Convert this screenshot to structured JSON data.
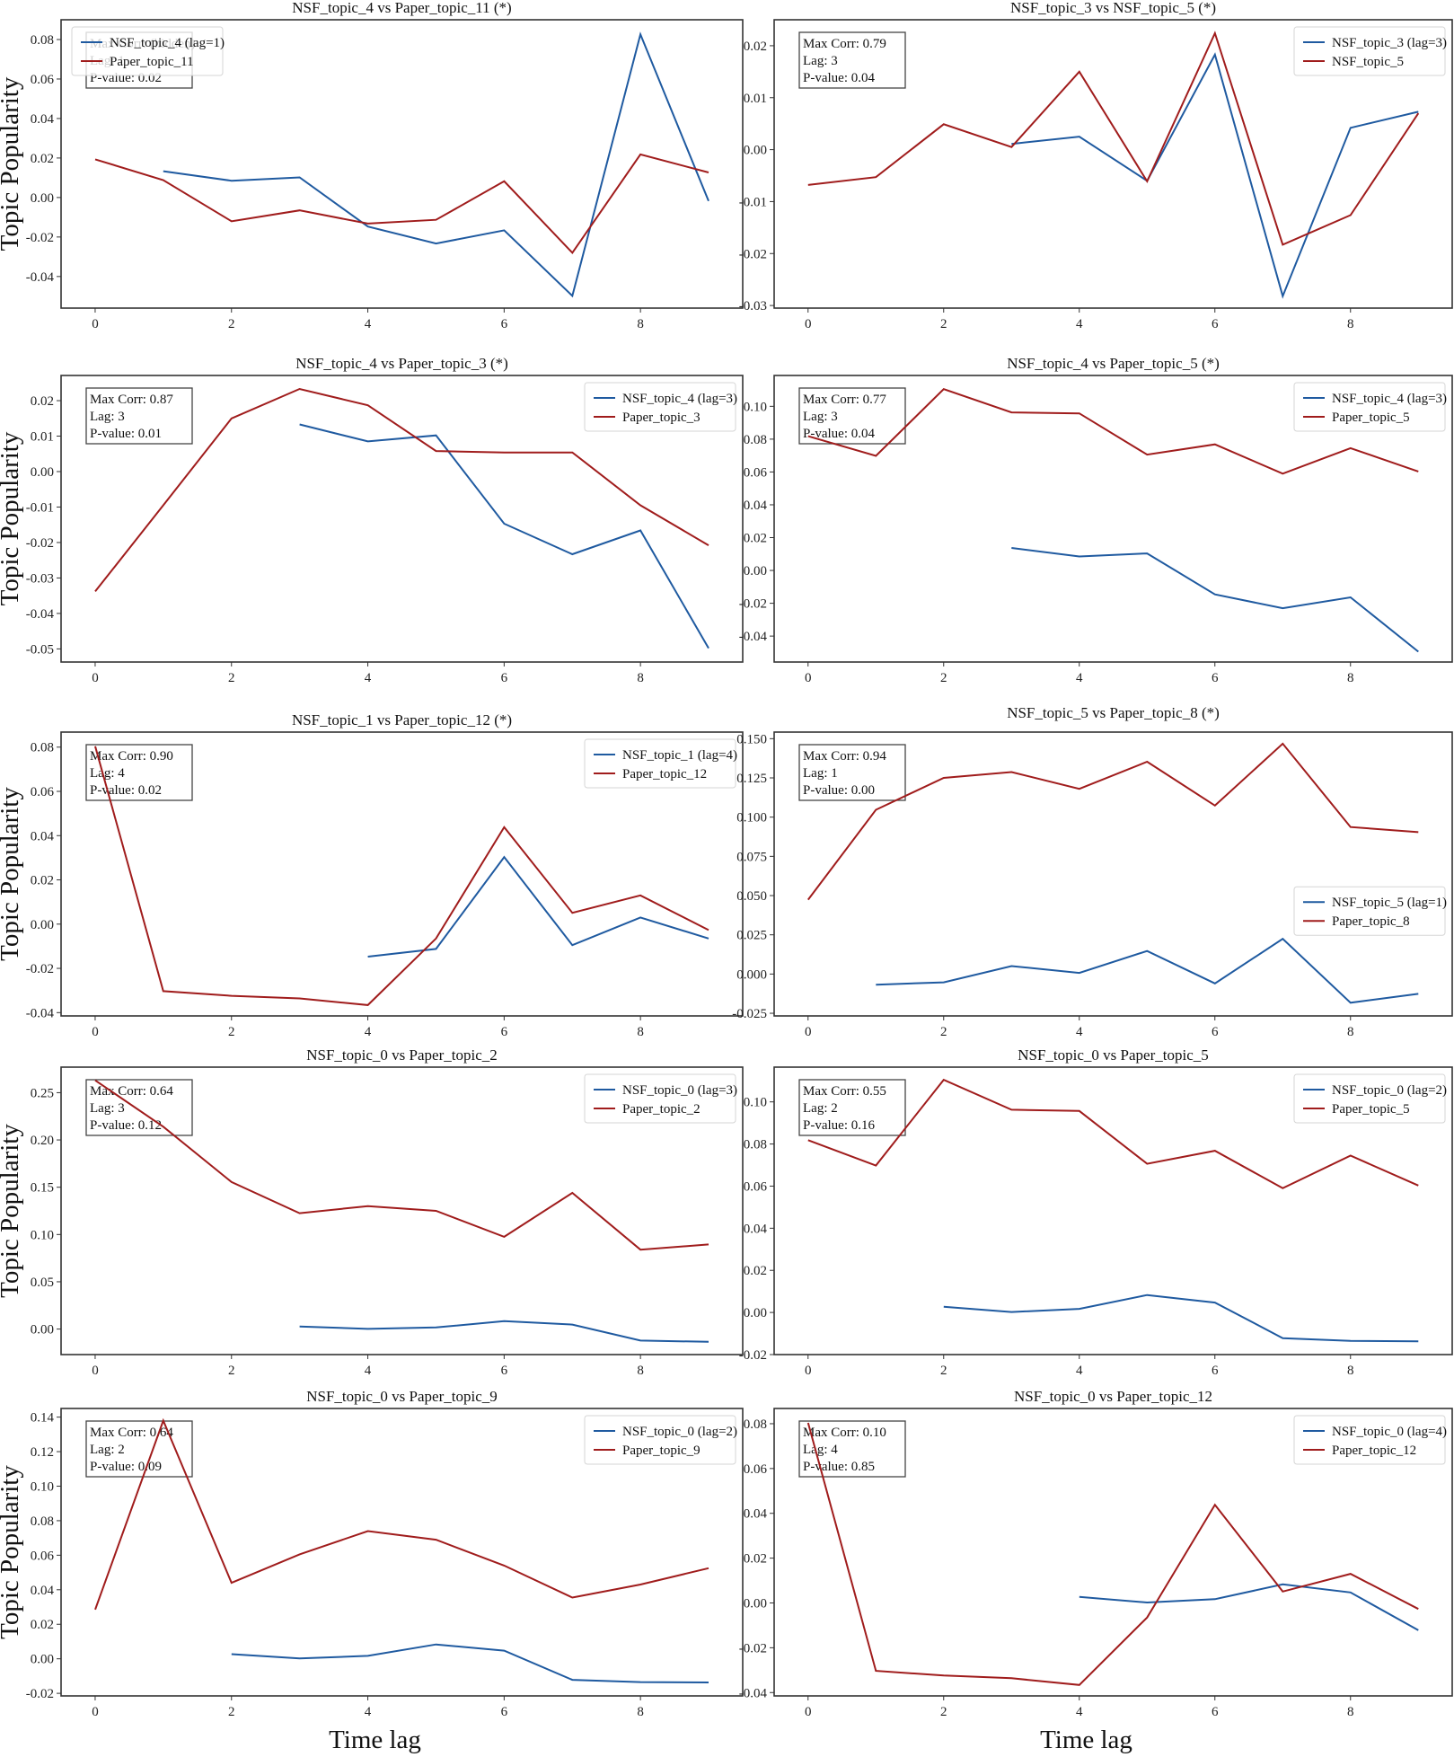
{
  "figure": {
    "ylabel": "Topic Popularity",
    "xlabel": "Time lag",
    "colors": {
      "nsf": "#1f5aa0",
      "paper": "#a01c1c"
    }
  },
  "chart_data": [
    {
      "type": "line",
      "title": "NSF_topic_4 vs Paper_topic_11 (*)",
      "annotation": [
        "Max Corr: (hidden)",
        "Lag: 1",
        "P-value: 0.02"
      ],
      "annotation_hidden_by_legend": true,
      "legend": "top-left",
      "x_ticks": [
        0,
        2,
        4,
        6,
        8
      ],
      "xlim": [
        -0.5,
        9.5
      ],
      "y_ticks": [
        -0.04,
        -0.02,
        0.0,
        0.02,
        0.04,
        0.06,
        0.08
      ],
      "y_tick_labels": [
        "-0.04",
        "-0.02",
        "0.00",
        "0.02",
        "0.04",
        "0.06",
        "0.08"
      ],
      "ylim": [
        -0.056,
        0.09
      ],
      "series": [
        {
          "name": "NSF_topic_4 (lag=1)",
          "color_key": "nsf",
          "x": [
            1,
            2,
            3,
            4,
            5,
            6,
            7,
            8,
            9
          ],
          "values": [
            0.0133,
            0.0085,
            0.0102,
            -0.0147,
            -0.0233,
            -0.0166,
            -0.0498,
            0.0826,
            -0.0018
          ]
        },
        {
          "name": "Paper_topic_11",
          "color_key": "paper",
          "x": [
            0,
            1,
            2,
            3,
            4,
            5,
            6,
            7,
            8,
            9
          ],
          "values": [
            0.0193,
            0.0088,
            -0.012,
            -0.0065,
            -0.0132,
            -0.0113,
            0.0082,
            -0.028,
            0.0218,
            0.0127
          ]
        }
      ]
    },
    {
      "type": "line",
      "title": "NSF_topic_3 vs NSF_topic_5 (*)",
      "annotation": [
        "Max Corr: 0.79",
        "Lag: 3",
        "P-value: 0.04"
      ],
      "legend": "top-right",
      "x_ticks": [
        0,
        2,
        4,
        6,
        8
      ],
      "xlim": [
        -0.5,
        9.5
      ],
      "y_ticks": [
        -0.03,
        -0.02,
        -0.01,
        0.0,
        0.01,
        0.02
      ],
      "y_tick_labels": [
        "-0.03",
        "-0.02",
        "-0.01",
        "0.00",
        "0.01",
        "0.02"
      ],
      "ylim": [
        -0.0305,
        0.025
      ],
      "series": [
        {
          "name": "NSF_topic_3 (lag=3)",
          "color_key": "nsf",
          "x": [
            3,
            4,
            5,
            6,
            7,
            8,
            9
          ],
          "values": [
            0.0011,
            0.0025,
            -0.006,
            0.0183,
            -0.0282,
            0.0042,
            0.0073
          ]
        },
        {
          "name": "NSF_topic_5",
          "color_key": "paper",
          "x": [
            0,
            1,
            2,
            3,
            4,
            5,
            6,
            7,
            8,
            9
          ],
          "values": [
            -0.0068,
            -0.0053,
            0.0049,
            0.0005,
            0.015,
            -0.0061,
            0.0224,
            -0.0183,
            -0.0126,
            0.007
          ]
        }
      ]
    },
    {
      "type": "line",
      "title": "NSF_topic_4 vs Paper_topic_3 (*)",
      "annotation": [
        "Max Corr: 0.87",
        "Lag: 3",
        "P-value: 0.01"
      ],
      "legend": "top-right",
      "x_ticks": [
        0,
        2,
        4,
        6,
        8
      ],
      "xlim": [
        -0.5,
        9.5
      ],
      "y_ticks": [
        -0.05,
        -0.04,
        -0.03,
        -0.02,
        -0.01,
        0.0,
        0.01,
        0.02
      ],
      "y_tick_labels": [
        "-0.05",
        "-0.04",
        "-0.03",
        "-0.02",
        "-0.01",
        "0.00",
        "0.01",
        "0.02"
      ],
      "ylim": [
        -0.0537,
        0.0271
      ],
      "series": [
        {
          "name": "NSF_topic_4 (lag=3)",
          "color_key": "nsf",
          "x": [
            3,
            4,
            5,
            6,
            7,
            8,
            9
          ],
          "values": [
            0.0133,
            0.0085,
            0.0102,
            -0.0147,
            -0.0233,
            -0.0166,
            -0.0498
          ]
        },
        {
          "name": "Paper_topic_3",
          "color_key": "paper",
          "x": [
            0,
            1,
            2,
            3,
            4,
            5,
            6,
            7,
            8,
            9
          ],
          "values": [
            -0.0338,
            -0.0095,
            0.015,
            0.0233,
            0.0187,
            0.0058,
            0.0054,
            0.0054,
            -0.0095,
            -0.0208
          ]
        }
      ]
    },
    {
      "type": "line",
      "title": "NSF_topic_4 vs Paper_topic_5 (*)",
      "annotation": [
        "Max Corr: 0.77",
        "Lag: 3",
        "P-value: 0.04"
      ],
      "legend": "top-right",
      "x_ticks": [
        0,
        2,
        4,
        6,
        8
      ],
      "xlim": [
        -0.5,
        9.5
      ],
      "y_ticks": [
        -0.04,
        -0.02,
        0.0,
        0.02,
        0.04,
        0.06,
        0.08,
        0.1
      ],
      "y_tick_labels": [
        "-0.04",
        "-0.02",
        "0.00",
        "0.02",
        "0.04",
        "0.06",
        "0.08",
        "0.10"
      ],
      "ylim": [
        -0.0558,
        0.1188
      ],
      "series": [
        {
          "name": "NSF_topic_4 (lag=3)",
          "color_key": "nsf",
          "x": [
            3,
            4,
            5,
            6,
            7,
            8,
            9
          ],
          "values": [
            0.0137,
            0.0085,
            0.0104,
            -0.0146,
            -0.023,
            -0.0164,
            -0.0495
          ]
        },
        {
          "name": "Paper_topic_5",
          "color_key": "paper",
          "x": [
            0,
            1,
            2,
            3,
            4,
            5,
            6,
            7,
            8,
            9
          ],
          "values": [
            0.0818,
            0.0698,
            0.1105,
            0.0963,
            0.0957,
            0.0706,
            0.0768,
            0.059,
            0.0745,
            0.0603
          ]
        }
      ]
    },
    {
      "type": "line",
      "title": "NSF_topic_1 vs Paper_topic_12 (*)",
      "annotation": [
        "Max Corr: 0.90",
        "Lag: 4",
        "P-value: 0.02"
      ],
      "legend": "top-right",
      "x_ticks": [
        0,
        2,
        4,
        6,
        8
      ],
      "xlim": [
        -0.5,
        9.5
      ],
      "y_ticks": [
        -0.04,
        -0.02,
        0.0,
        0.02,
        0.04,
        0.06,
        0.08
      ],
      "y_tick_labels": [
        "-0.04",
        "-0.02",
        "0.00",
        "0.02",
        "0.04",
        "0.06",
        "0.08"
      ],
      "ylim": [
        -0.0415,
        0.0868
      ],
      "series": [
        {
          "name": "NSF_topic_1 (lag=4)",
          "color_key": "nsf",
          "x": [
            4,
            5,
            6,
            7,
            8,
            9
          ],
          "values": [
            -0.0147,
            -0.0112,
            0.0303,
            -0.0095,
            0.003,
            -0.0065
          ]
        },
        {
          "name": "Paper_topic_12",
          "color_key": "paper",
          "x": [
            0,
            1,
            2,
            3,
            4,
            5,
            6,
            7,
            8,
            9
          ],
          "values": [
            0.0804,
            -0.0303,
            -0.0324,
            -0.0336,
            -0.0366,
            -0.0065,
            0.0438,
            0.0051,
            0.013,
            -0.0027
          ]
        }
      ]
    },
    {
      "type": "line",
      "title": "NSF_topic_5 vs Paper_topic_8 (*)",
      "annotation": [
        "Max Corr: 0.94",
        "Lag: 1",
        "P-value: 0.00"
      ],
      "legend": "center-right",
      "x_ticks": [
        0,
        2,
        4,
        6,
        8
      ],
      "xlim": [
        -0.5,
        9.5
      ],
      "y_ticks": [
        -0.025,
        0.0,
        0.025,
        0.05,
        0.075,
        0.1,
        0.125,
        0.15
      ],
      "y_tick_labels": [
        "-0.025",
        "0.000",
        "0.025",
        "0.050",
        "0.075",
        "0.100",
        "0.125",
        "0.150"
      ],
      "ylim": [
        -0.0267,
        0.1542
      ],
      "series": [
        {
          "name": "NSF_topic_5 (lag=1)",
          "color_key": "nsf",
          "x": [
            1,
            2,
            3,
            4,
            5,
            6,
            7,
            8,
            9
          ],
          "values": [
            -0.0068,
            -0.0053,
            0.0051,
            0.0007,
            0.0147,
            -0.006,
            0.0224,
            -0.0183,
            -0.0126
          ]
        },
        {
          "name": "Paper_topic_8",
          "color_key": "paper",
          "x": [
            0,
            1,
            2,
            3,
            4,
            5,
            6,
            7,
            8,
            9
          ],
          "values": [
            0.0474,
            0.1047,
            0.125,
            0.1287,
            0.118,
            0.1353,
            0.1074,
            0.1468,
            0.0937,
            0.0904
          ]
        }
      ]
    },
    {
      "type": "line",
      "title": "NSF_topic_0 vs Paper_topic_2",
      "annotation": [
        "Max Corr: 0.64",
        "Lag: 3",
        "P-value: 0.12"
      ],
      "legend": "top-right",
      "x_ticks": [
        0,
        2,
        4,
        6,
        8
      ],
      "xlim": [
        -0.5,
        9.5
      ],
      "y_ticks": [
        0.0,
        0.05,
        0.1,
        0.15,
        0.2,
        0.25
      ],
      "y_tick_labels": [
        "0.00",
        "0.05",
        "0.10",
        "0.15",
        "0.20",
        "0.25"
      ],
      "ylim": [
        -0.027,
        0.277
      ],
      "series": [
        {
          "name": "NSF_topic_0 (lag=3)",
          "color_key": "nsf",
          "x": [
            3,
            4,
            5,
            6,
            7,
            8,
            9
          ],
          "values": [
            0.0027,
            0.0002,
            0.0017,
            0.0083,
            0.0047,
            -0.0122,
            -0.0135
          ]
        },
        {
          "name": "Paper_topic_2",
          "color_key": "paper",
          "x": [
            0,
            1,
            2,
            3,
            4,
            5,
            6,
            7,
            8,
            9
          ],
          "values": [
            0.263,
            0.214,
            0.1555,
            0.1225,
            0.13,
            0.125,
            0.0975,
            0.144,
            0.084,
            0.0895
          ]
        }
      ]
    },
    {
      "type": "line",
      "title": "NSF_topic_0 vs Paper_topic_5",
      "annotation": [
        "Max Corr: 0.55",
        "Lag: 2",
        "P-value: 0.16"
      ],
      "legend": "top-right",
      "x_ticks": [
        0,
        2,
        4,
        6,
        8
      ],
      "xlim": [
        -0.5,
        9.5
      ],
      "y_ticks": [
        -0.02,
        0.0,
        0.02,
        0.04,
        0.06,
        0.08,
        0.1
      ],
      "y_tick_labels": [
        "-0.02",
        "0.00",
        "0.02",
        "0.04",
        "0.06",
        "0.08",
        "0.10"
      ],
      "ylim": [
        -0.02,
        0.1165
      ],
      "series": [
        {
          "name": "NSF_topic_0 (lag=2)",
          "color_key": "nsf",
          "x": [
            2,
            3,
            4,
            5,
            6,
            7,
            8,
            9
          ],
          "values": [
            0.0027,
            0.0002,
            0.0017,
            0.0083,
            0.0047,
            -0.0122,
            -0.0135,
            -0.0137
          ]
        },
        {
          "name": "Paper_topic_5",
          "color_key": "paper",
          "x": [
            0,
            1,
            2,
            3,
            4,
            5,
            6,
            7,
            8,
            9
          ],
          "values": [
            0.0818,
            0.0698,
            0.1105,
            0.0963,
            0.0957,
            0.0706,
            0.0768,
            0.059,
            0.0745,
            0.0603
          ]
        }
      ]
    },
    {
      "type": "line",
      "title": "NSF_topic_0 vs Paper_topic_9",
      "annotation": [
        "Max Corr: 0.64",
        "Lag: 2",
        "P-value: 0.09"
      ],
      "legend": "top-right",
      "x_ticks": [
        0,
        2,
        4,
        6,
        8
      ],
      "xlim": [
        -0.5,
        9.5
      ],
      "y_ticks": [
        -0.02,
        0.0,
        0.02,
        0.04,
        0.06,
        0.08,
        0.1,
        0.12,
        0.14
      ],
      "y_tick_labels": [
        "-0.02",
        "0.00",
        "0.02",
        "0.04",
        "0.06",
        "0.08",
        "0.10",
        "0.12",
        "0.14"
      ],
      "ylim": [
        -0.0215,
        0.145
      ],
      "series": [
        {
          "name": "NSF_topic_0 (lag=2)",
          "color_key": "nsf",
          "x": [
            2,
            3,
            4,
            5,
            6,
            7,
            8,
            9
          ],
          "values": [
            0.0027,
            0.0002,
            0.0017,
            0.0083,
            0.0047,
            -0.0122,
            -0.0135,
            -0.0137
          ]
        },
        {
          "name": "Paper_topic_9",
          "color_key": "paper",
          "x": [
            0,
            1,
            2,
            3,
            4,
            5,
            6,
            7,
            8,
            9
          ],
          "values": [
            0.0285,
            0.138,
            0.044,
            0.0605,
            0.074,
            0.069,
            0.054,
            0.0355,
            0.043,
            0.0525
          ]
        }
      ]
    },
    {
      "type": "line",
      "title": "NSF_topic_0 vs Paper_topic_12",
      "annotation": [
        "Max Corr: 0.10",
        "Lag: 4",
        "P-value: 0.85"
      ],
      "legend": "top-right",
      "x_ticks": [
        0,
        2,
        4,
        6,
        8
      ],
      "xlim": [
        -0.5,
        9.5
      ],
      "y_ticks": [
        -0.04,
        -0.02,
        0.0,
        0.02,
        0.04,
        0.06,
        0.08
      ],
      "y_tick_labels": [
        "-0.04",
        "-0.02",
        "0.00",
        "0.02",
        "0.04",
        "0.06",
        "0.08"
      ],
      "ylim": [
        -0.0415,
        0.0868
      ],
      "series": [
        {
          "name": "NSF_topic_0 (lag=4)",
          "color_key": "nsf",
          "x": [
            4,
            5,
            6,
            7,
            8,
            9
          ],
          "values": [
            0.0027,
            0.0002,
            0.0017,
            0.0083,
            0.0047,
            -0.0122
          ]
        },
        {
          "name": "Paper_topic_12",
          "color_key": "paper",
          "x": [
            0,
            1,
            2,
            3,
            4,
            5,
            6,
            7,
            8,
            9
          ],
          "values": [
            0.0804,
            -0.0303,
            -0.0324,
            -0.0336,
            -0.0366,
            -0.0065,
            0.0438,
            0.0051,
            0.013,
            -0.0027
          ]
        }
      ]
    }
  ]
}
